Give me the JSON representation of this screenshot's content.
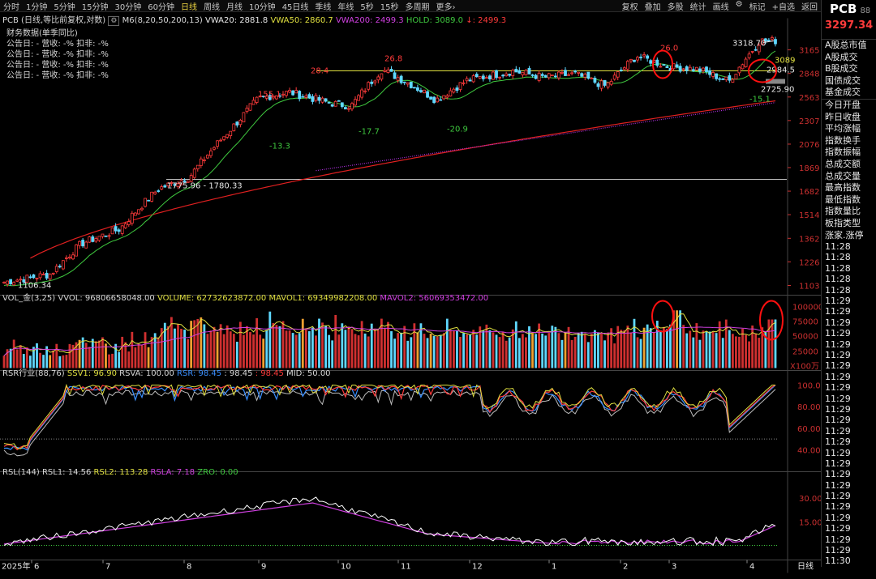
{
  "timeframes": [
    {
      "label": "分时",
      "active": false
    },
    {
      "label": "1分钟",
      "active": false
    },
    {
      "label": "5分钟",
      "active": false
    },
    {
      "label": "15分钟",
      "active": false
    },
    {
      "label": "30分钟",
      "active": false
    },
    {
      "label": "60分钟",
      "active": false
    },
    {
      "label": "日线",
      "active": true
    },
    {
      "label": "周线",
      "active": false
    },
    {
      "label": "月线",
      "active": false
    },
    {
      "label": "10分钟",
      "active": false
    },
    {
      "label": "45日线",
      "active": false
    },
    {
      "label": "季线",
      "active": false
    },
    {
      "label": "年线",
      "active": false
    },
    {
      "label": "5秒",
      "active": false
    },
    {
      "label": "15秒",
      "active": false
    },
    {
      "label": "多周期",
      "active": false
    },
    {
      "label": "更多›",
      "active": false
    }
  ],
  "tools": [
    "复权",
    "叠加",
    "多股",
    "统计",
    "画线",
    "标记",
    "+自选",
    "返回"
  ],
  "symbol": {
    "name": "PCB",
    "code_partial": "88",
    "price": "3297.34"
  },
  "right_menu": [
    "A股总市值",
    "A股成交",
    "B股成交",
    "国债成交",
    "基金成交",
    "今日开盘",
    "昨日收盘",
    "平均涨幅",
    "指数换手",
    "指数振幅",
    "总成交额",
    "总成交量",
    "最高指数",
    "最低指数",
    "指数量比",
    "板指类型",
    "涨家.涨停"
  ],
  "right_times": [
    "11:28",
    "11:28",
    "11:28",
    "11:28",
    "11:28",
    "11:29",
    "11:29",
    "11:29",
    "11:29",
    "11:29",
    "11:29",
    "11:29",
    "11:29",
    "11:29",
    "11:29",
    "11:29",
    "11:29",
    "11:29",
    "11:29",
    "11:29",
    "11:29",
    "11:29",
    "11:29",
    "11:29",
    "11:29",
    "11:29",
    "11:29",
    "11:29",
    "11:29",
    "11:30",
    "11:30",
    "11:30"
  ],
  "main_legend": {
    "title": "PCB (日线,等比前复权,对数)",
    "ma": "M6(8,20,50,200,13)",
    "vwa20": "VWA20: 2881.8",
    "vwa50": "VWA50: 2860.7",
    "vwa200": "VWA200: 2499.3",
    "hold": "HOLD: 3089.0",
    "last": "↓: 2499.3"
  },
  "financials": {
    "title": "财务数据(单季同比)",
    "rows": [
      "公告日: -    营收: -%    扣非: -%",
      "公告日: -    营收: -%    扣非: -%",
      "公告日: -    营收: -%    扣非: -%",
      "公告日: -    营收: -%    扣非: -%"
    ]
  },
  "price_axis": [
    "3165",
    "2848",
    "2563",
    "2307",
    "2076",
    "1869",
    "1682",
    "1514",
    "1362",
    "1226",
    "1103"
  ],
  "annotations": {
    "high": "3318.70",
    "hold_label": "3089",
    "label_2984": "2984.5",
    "low_recent": "2725.90",
    "range": "1775.96 - 1780.33",
    "start_low": "1106.34",
    "pct_26_0": "26.0",
    "pct_26_8": "26.8",
    "pct_28_4": "28.4",
    "pct_155_1": "155.1",
    "pct_neg13_3": "-13.3",
    "pct_neg17_7": "-17.7",
    "pct_neg20_9": "-20.9",
    "pct_neg15_1": "-15.1"
  },
  "vol_legend": {
    "title": "VOL_金(3,25)",
    "vvol": "VVOL: 96806658048.00",
    "volume": "VOLUME: 62732623872.00",
    "mavol1": "MAVOL1: 69349982208.00",
    "mavol2": "MAVOL2: 56069353472.00"
  },
  "vol_axis": [
    "100000",
    "75000",
    "50000",
    "25000",
    "X100万"
  ],
  "rsr_legend": {
    "title": "RSR行业(88,76)",
    "ssv1": "SSV1: 96.90",
    "rsva": "RSVA: 100.00",
    "rsr": "RSR: 98.45",
    "v2": ": 98.45",
    "v3": ": 98.45",
    "mid": "MID: 50.00"
  },
  "rsr_axis": [
    "100.0",
    "80.00",
    "60.00",
    "40.00"
  ],
  "rsl_legend": {
    "title": "RSL(144)",
    "rsl1": "RSL1: 14.56",
    "rsl2": "RSL2: 113.28",
    "rsla": "RSLA: 7.18",
    "zro": "ZRO: 0.00"
  },
  "rsl_axis": [
    "30.00",
    "15.00"
  ],
  "x_axis": {
    "start": "2025年",
    "months": [
      "6",
      "7",
      "8",
      "9",
      "10",
      "11",
      "12",
      "1",
      "2",
      "3",
      "4"
    ],
    "period": "日线"
  },
  "colors": {
    "up": "#ff3b3b",
    "down": "#5fd8ff",
    "ma_green": "#3fc93f",
    "ma_red": "#e02020",
    "ma_purple": "#b030e0",
    "hold_yellow": "#e0e040",
    "circle": "#ff1010"
  },
  "chart_data": {
    "type": "candlestick",
    "scale": "log",
    "ylim": [
      1103,
      3318.7
    ],
    "points": [
      [
        0,
        1120
      ],
      [
        0.06,
        1160
      ],
      [
        0.1,
        1330
      ],
      [
        0.15,
        1420
      ],
      [
        0.2,
        1700
      ],
      [
        0.24,
        1790
      ],
      [
        0.3,
        2270
      ],
      [
        0.33,
        2550
      ],
      [
        0.37,
        2620
      ],
      [
        0.42,
        2500
      ],
      [
        0.45,
        2460
      ],
      [
        0.49,
        2900
      ],
      [
        0.53,
        2700
      ],
      [
        0.56,
        2530
      ],
      [
        0.6,
        2760
      ],
      [
        0.66,
        2880
      ],
      [
        0.7,
        2800
      ],
      [
        0.74,
        2840
      ],
      [
        0.78,
        2690
      ],
      [
        0.82,
        3080
      ],
      [
        0.86,
        2940
      ],
      [
        0.9,
        2900
      ],
      [
        0.94,
        2750
      ],
      [
        0.98,
        3297.34
      ]
    ]
  }
}
